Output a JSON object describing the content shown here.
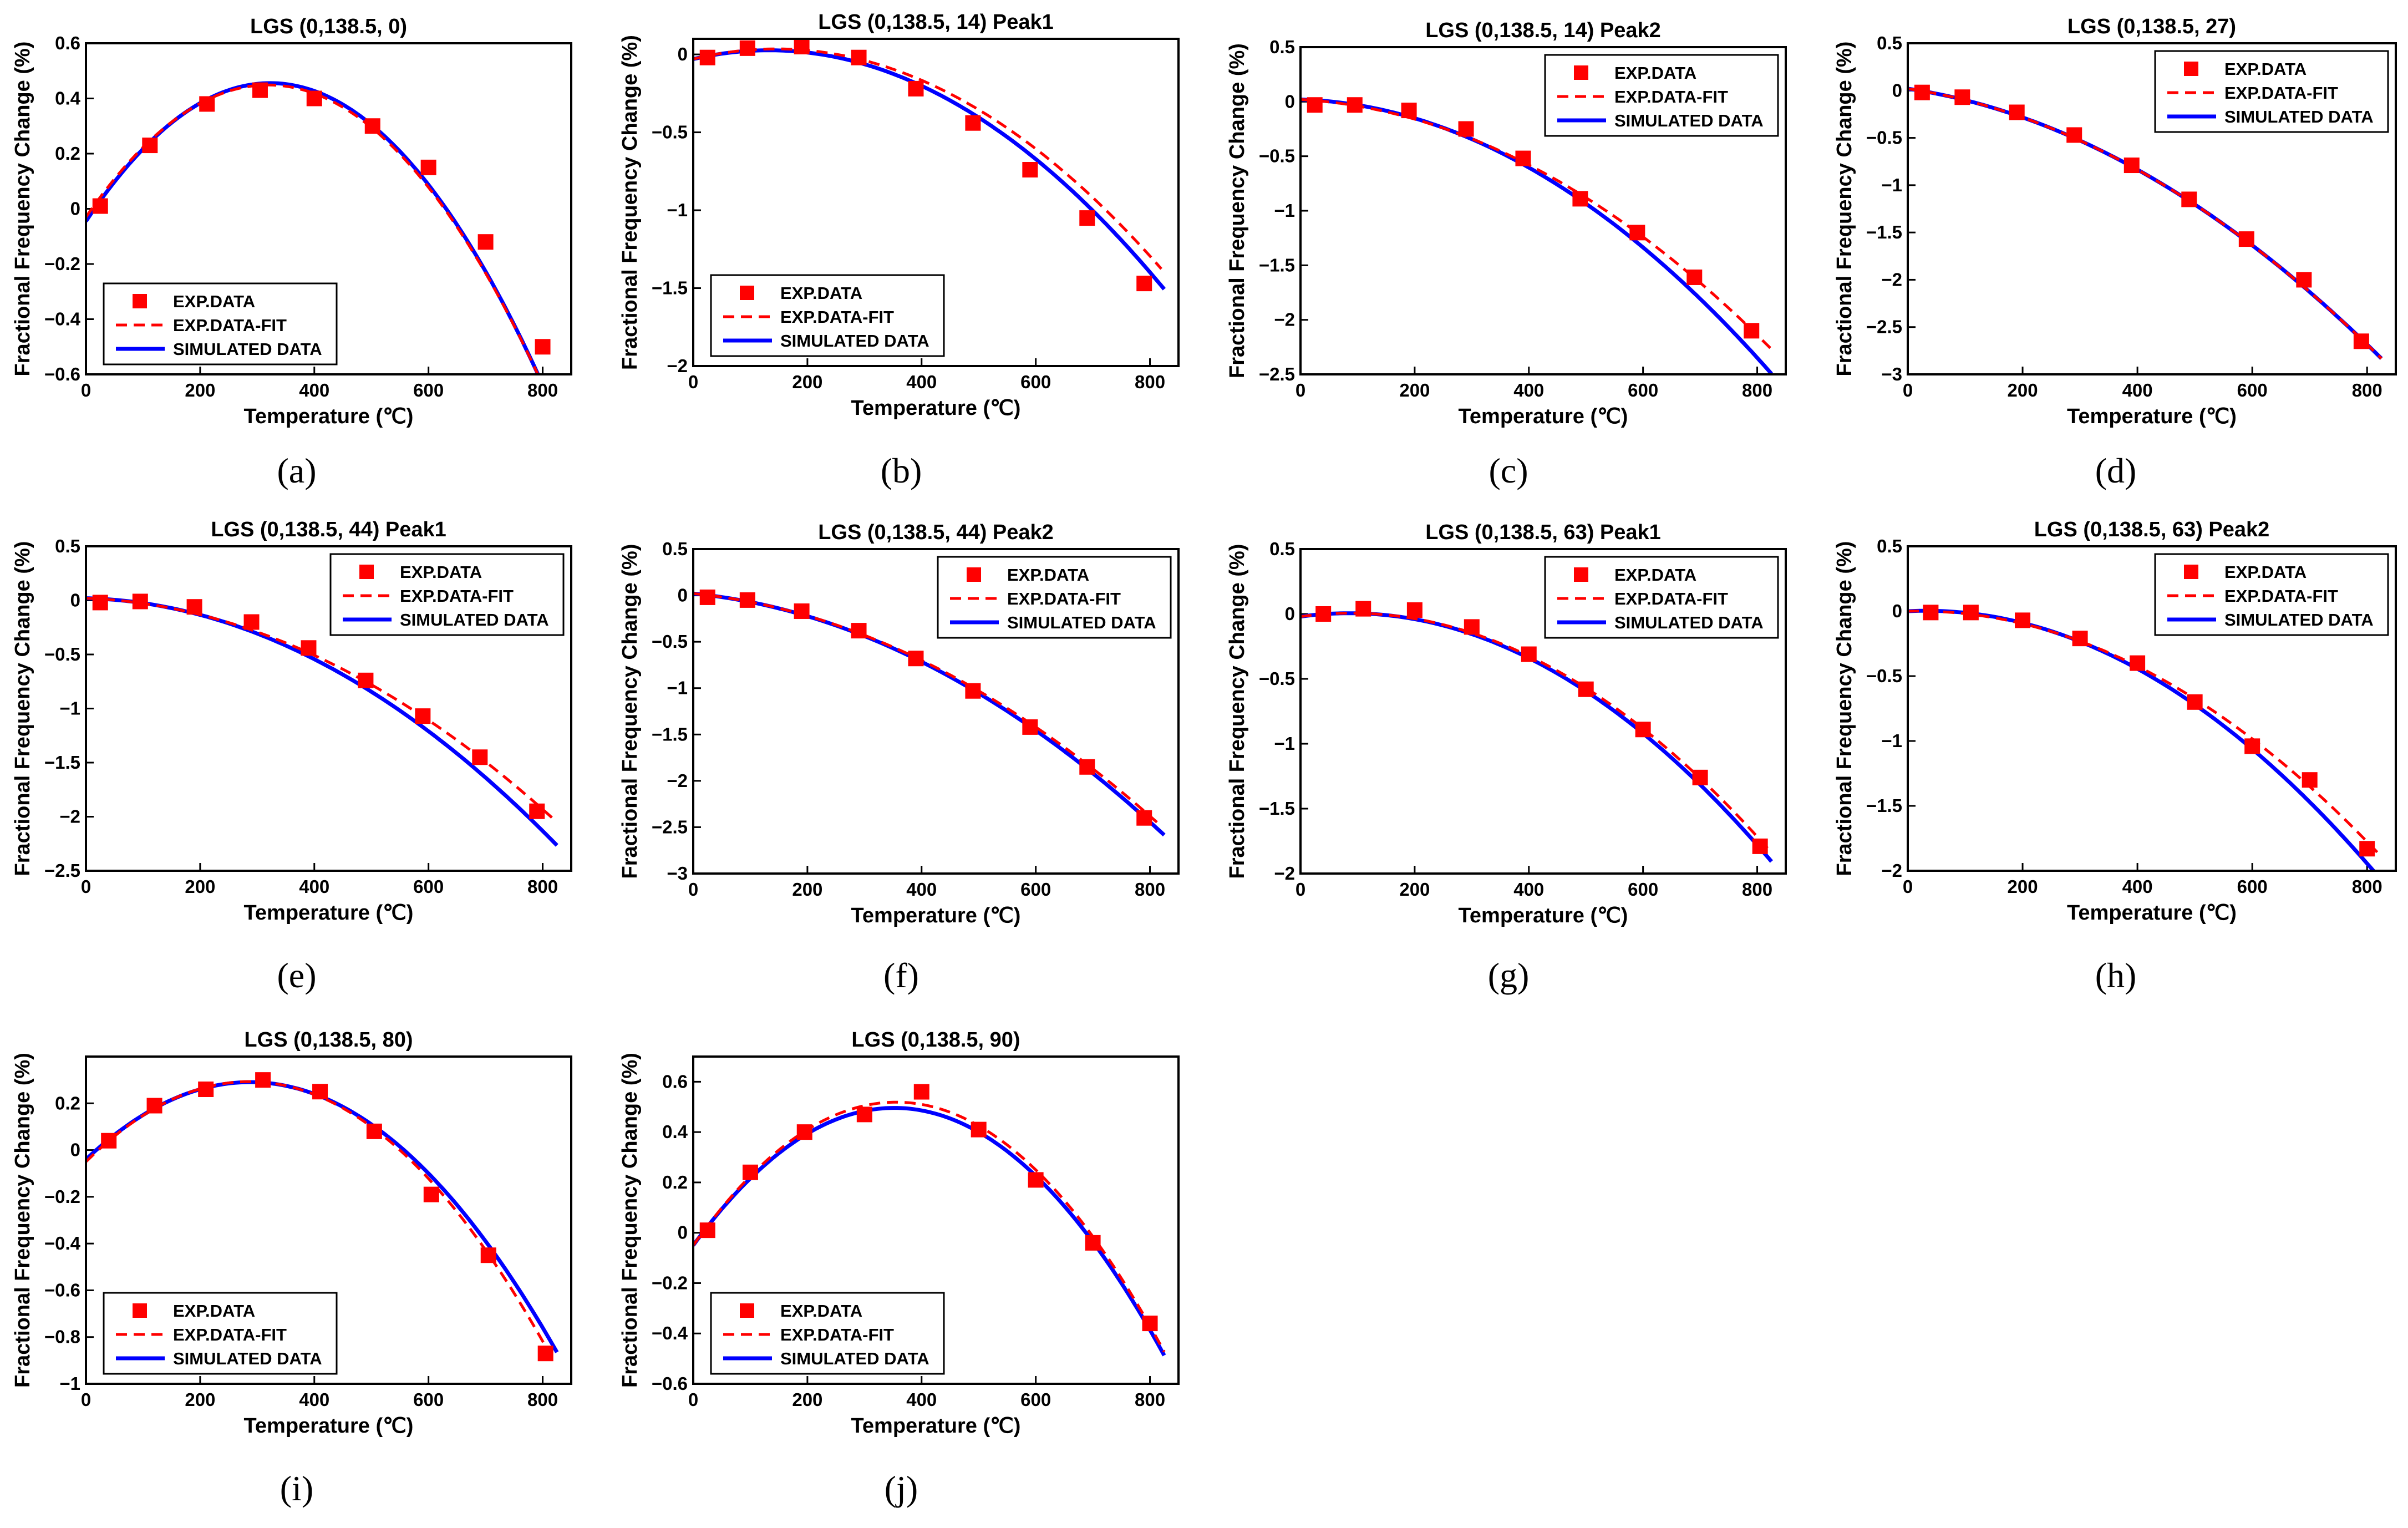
{
  "figure": {
    "colors": {
      "exp": "#ff0000",
      "fit": "#ff0000",
      "sim": "#0000ff",
      "axis": "#000000"
    }
  },
  "chart_data": [
    {
      "type": "scatter+line",
      "panel": "(a)",
      "title": "LGS (0,138.5, 0)",
      "xlabel": "Temperature (℃)",
      "ylabel": "Fractional Frequency Change (%)",
      "xlim": [
        0,
        850
      ],
      "ylim": [
        -0.6,
        0.6
      ],
      "xticks": [
        0,
        200,
        400,
        600,
        800
      ],
      "yticks": [
        -0.6,
        -0.4,
        -0.2,
        0,
        0.2,
        0.4,
        0.6
      ],
      "ytick_labels": [
        "-0.6",
        "-0.4",
        "-0.2",
        "0",
        "0.2",
        "0.4",
        "0.6"
      ],
      "legend": {
        "position": "bottom-left",
        "entries": [
          "EXP.DATA",
          "EXP.DATA-FIT",
          "SIMULATED DATA"
        ]
      },
      "exp": {
        "x": [
          25,
          112,
          212,
          305,
          400,
          502,
          600,
          700,
          800
        ],
        "y": [
          0.01,
          0.23,
          0.38,
          0.43,
          0.4,
          0.3,
          0.15,
          -0.12,
          -0.5
        ]
      },
      "fit": {
        "coef": [
          -0.03,
          0.003,
          -4.7e-06
        ],
        "x0": 0,
        "x1": 820
      },
      "sim": {
        "coef": [
          -0.045,
          0.0031,
          -4.8e-06
        ],
        "x0": 0,
        "x1": 825
      }
    },
    {
      "type": "scatter+line",
      "panel": "(b)",
      "title": "LGS (0,138.5, 14) Peak1",
      "xlabel": "Temperature (℃)",
      "ylabel": "Fractional Frequency Change (%)",
      "xlim": [
        0,
        850
      ],
      "ylim": [
        -2,
        0.1
      ],
      "xticks": [
        0,
        200,
        400,
        600,
        800
      ],
      "yticks": [
        -2,
        -1.5,
        -1,
        -0.5,
        0
      ],
      "ytick_labels": [
        "-2",
        "-1.5",
        "-1",
        "-0.5",
        "0"
      ],
      "legend": {
        "position": "bottom-left",
        "entries": [
          "EXP.DATA",
          "EXP.DATA-FIT",
          "SIMULATED DATA"
        ]
      },
      "exp": {
        "x": [
          25,
          95,
          190,
          290,
          390,
          490,
          590,
          690,
          790
        ],
        "y": [
          -0.02,
          0.04,
          0.05,
          -0.02,
          -0.22,
          -0.44,
          -0.74,
          -1.05,
          -1.47
        ]
      },
      "fit": {
        "coef": [
          -0.03,
          0.0009,
          -3.1e-06
        ],
        "x0": 0,
        "x1": 820
      },
      "sim": {
        "coef": [
          -0.03,
          0.00085,
          -3.2e-06
        ],
        "x0": 0,
        "x1": 825
      }
    },
    {
      "type": "scatter+line",
      "panel": "(c)",
      "title": "LGS (0,138.5, 14) Peak2",
      "xlabel": "Temperature (℃)",
      "ylabel": "Fractional Frequency Change (%)",
      "xlim": [
        0,
        850
      ],
      "ylim": [
        -2.5,
        0.5
      ],
      "xticks": [
        0,
        200,
        400,
        600,
        800
      ],
      "yticks": [
        -2.5,
        -2,
        -1.5,
        -1,
        -0.5,
        0,
        0.5
      ],
      "ytick_labels": [
        "-2.5",
        "-2",
        "-1.5",
        "-1",
        "-0.5",
        "0",
        "0.5"
      ],
      "legend": {
        "position": "top-right",
        "entries": [
          "EXP.DATA",
          "EXP.DATA-FIT",
          "SIMULATED DATA"
        ]
      },
      "exp": {
        "x": [
          25,
          95,
          190,
          290,
          390,
          490,
          590,
          690,
          790
        ],
        "y": [
          -0.03,
          -0.03,
          -0.08,
          -0.25,
          -0.52,
          -0.89,
          -1.2,
          -1.61,
          -2.1
        ]
      },
      "fit": {
        "coef": [
          0.02,
          -0.0003,
          -3e-06
        ],
        "x0": 0,
        "x1": 825
      },
      "sim": {
        "coef": [
          0.02,
          -0.00016,
          -3.5e-06
        ],
        "x0": 0,
        "x1": 825
      }
    },
    {
      "type": "scatter+line",
      "panel": "(d)",
      "title": "LGS (0,138.5, 27)",
      "xlabel": "Temperature (℃)",
      "ylabel": "Fractional Frequency Change (%)",
      "xlim": [
        0,
        850
      ],
      "ylim": [
        -3,
        0.5
      ],
      "xticks": [
        0,
        200,
        400,
        600,
        800
      ],
      "yticks": [
        -3,
        -2.5,
        -2,
        -1.5,
        -1,
        -0.5,
        0,
        0.5
      ],
      "ytick_labels": [
        "-3",
        "-2.5",
        "-2",
        "-1.5",
        "-1",
        "-0.5",
        "0",
        "0.5"
      ],
      "legend": {
        "position": "top-right",
        "entries": [
          "EXP.DATA",
          "EXP.DATA-FIT",
          "SIMULATED DATA"
        ]
      },
      "exp": {
        "x": [
          25,
          95,
          190,
          290,
          390,
          490,
          590,
          690,
          790
        ],
        "y": [
          -0.02,
          -0.07,
          -0.23,
          -0.47,
          -0.79,
          -1.15,
          -1.57,
          -2.0,
          -2.65
        ]
      },
      "fit": {
        "coef": [
          0.02,
          -0.0009,
          -3.1e-06
        ],
        "x0": 0,
        "x1": 825
      },
      "sim": {
        "coef": [
          0.02,
          -0.0009,
          -3.1e-06
        ],
        "x0": 0,
        "x1": 825
      }
    },
    {
      "type": "scatter+line",
      "panel": "(e)",
      "title": "LGS (0,138.5, 44) Peak1",
      "xlabel": "Temperature (℃)",
      "ylabel": "Fractional Frequency Change (%)",
      "xlim": [
        0,
        850
      ],
      "ylim": [
        -2.5,
        0.5
      ],
      "xticks": [
        0,
        200,
        400,
        600,
        800
      ],
      "yticks": [
        -2.5,
        -2,
        -1.5,
        -1,
        -0.5,
        0,
        0.5
      ],
      "ytick_labels": [
        "-2.5",
        "-2",
        "-1.5",
        "-1",
        "-0.5",
        "0",
        "0.5"
      ],
      "legend": {
        "position": "top-right",
        "entries": [
          "EXP.DATA",
          "EXP.DATA-FIT",
          "SIMULATED DATA"
        ]
      },
      "exp": {
        "x": [
          25,
          95,
          190,
          290,
          390,
          490,
          590,
          690,
          790
        ],
        "y": [
          -0.02,
          -0.01,
          -0.06,
          -0.2,
          -0.44,
          -0.74,
          -1.07,
          -1.45,
          -1.95
        ]
      },
      "fit": {
        "coef": [
          0.02,
          -0.0002,
          -2.8e-06
        ],
        "x0": 0,
        "x1": 820
      },
      "sim": {
        "coef": [
          0.02,
          -0.00013,
          -3.2e-06
        ],
        "x0": 0,
        "x1": 825
      }
    },
    {
      "type": "scatter+line",
      "panel": "(f)",
      "title": "LGS (0,138.5, 44) Peak2",
      "xlabel": "Temperature (℃)",
      "ylabel": "Fractional Frequency Change (%)",
      "xlim": [
        0,
        850
      ],
      "ylim": [
        -3,
        0.5
      ],
      "xticks": [
        0,
        200,
        400,
        600,
        800
      ],
      "yticks": [
        -3,
        -2.5,
        -2,
        -1.5,
        -1,
        -0.5,
        0,
        0.5
      ],
      "ytick_labels": [
        "-3",
        "-2.5",
        "-2",
        "-1.5",
        "-1",
        "-0.5",
        "0",
        "0.5"
      ],
      "legend": {
        "position": "top-right",
        "entries": [
          "EXP.DATA",
          "EXP.DATA-FIT",
          "SIMULATED DATA"
        ]
      },
      "exp": {
        "x": [
          25,
          95,
          190,
          290,
          390,
          490,
          590,
          690,
          790
        ],
        "y": [
          -0.02,
          -0.05,
          -0.17,
          -0.38,
          -0.68,
          -1.03,
          -1.42,
          -1.85,
          -2.4
        ]
      },
      "fit": {
        "coef": [
          0.02,
          -0.0006,
          -3e-06
        ],
        "x0": 0,
        "x1": 820
      },
      "sim": {
        "coef": [
          0.02,
          -0.0006,
          -3.1e-06
        ],
        "x0": 0,
        "x1": 825
      }
    },
    {
      "type": "scatter+line",
      "panel": "(g)",
      "title": "LGS (0,138.5, 63) Peak1",
      "xlabel": "Temperature (℃)",
      "ylabel": "Fractional Frequency Change (%)",
      "xlim": [
        0,
        850
      ],
      "ylim": [
        -2,
        0.5
      ],
      "xticks": [
        0,
        200,
        400,
        600,
        800
      ],
      "yticks": [
        -2,
        -1.5,
        -1,
        -0.5,
        0,
        0.5
      ],
      "ytick_labels": [
        "-2",
        "-1.5",
        "-1",
        "-0.5",
        "0",
        "0.5"
      ],
      "legend": {
        "position": "top-right",
        "entries": [
          "EXP.DATA",
          "EXP.DATA-FIT",
          "SIMULATED DATA"
        ]
      },
      "exp": {
        "x": [
          40,
          110,
          200,
          300,
          400,
          500,
          600,
          700,
          805
        ],
        "y": [
          0.0,
          0.04,
          0.03,
          -0.1,
          -0.31,
          -0.58,
          -0.89,
          -1.26,
          -1.79
        ]
      },
      "fit": {
        "coef": [
          -0.02,
          0.0006,
          -3.4e-06
        ],
        "x0": 0,
        "x1": 820
      },
      "sim": {
        "coef": [
          -0.02,
          0.0006,
          -3.5e-06
        ],
        "x0": 0,
        "x1": 825
      }
    },
    {
      "type": "scatter+line",
      "panel": "(h)",
      "title": "LGS (0,138.5, 63) Peak2",
      "xlabel": "Temperature (℃)",
      "ylabel": "Fractional Frequency Change (%)",
      "xlim": [
        0,
        850
      ],
      "ylim": [
        -2,
        0.5
      ],
      "xticks": [
        0,
        200,
        400,
        600,
        800
      ],
      "yticks": [
        -2,
        -1.5,
        -1,
        -0.5,
        0,
        0.5
      ],
      "ytick_labels": [
        "-2",
        "-1.5",
        "-1",
        "-0.5",
        "0",
        "0.5"
      ],
      "legend": {
        "position": "top-right",
        "entries": [
          "EXP.DATA",
          "EXP.DATA-FIT",
          "SIMULATED DATA"
        ]
      },
      "exp": {
        "x": [
          40,
          110,
          200,
          300,
          400,
          500,
          600,
          700,
          800
        ],
        "y": [
          -0.01,
          -0.01,
          -0.07,
          -0.21,
          -0.4,
          -0.7,
          -1.04,
          -1.3,
          -1.83
        ]
      },
      "fit": {
        "coef": [
          0.0,
          0.0001,
          -2.9e-06
        ],
        "x0": 0,
        "x1": 825
      },
      "sim": {
        "coef": [
          0.0,
          0.00021,
          -3.3e-06
        ],
        "x0": 0,
        "x1": 825
      }
    },
    {
      "type": "scatter+line",
      "panel": "(i)",
      "title": "LGS (0,138.5, 80)",
      "xlabel": "Temperature (℃)",
      "ylabel": "Fractional Frequency Change (%)",
      "xlim": [
        0,
        850
      ],
      "ylim": [
        -1,
        0.4
      ],
      "xticks": [
        0,
        200,
        400,
        600,
        800
      ],
      "yticks": [
        -1,
        -0.8,
        -0.6,
        -0.4,
        -0.2,
        0,
        0.2
      ],
      "ytick_labels": [
        "-1",
        "-0.8",
        "-0.6",
        "-0.4",
        "-0.2",
        "0",
        "0.2"
      ],
      "legend": {
        "position": "bottom-left",
        "entries": [
          "EXP.DATA",
          "EXP.DATA-FIT",
          "SIMULATED DATA"
        ]
      },
      "exp": {
        "x": [
          40,
          120,
          210,
          310,
          410,
          505,
          605,
          705,
          805
        ],
        "y": [
          0.04,
          0.19,
          0.26,
          0.3,
          0.25,
          0.08,
          -0.19,
          -0.45,
          -0.87
        ]
      },
      "fit": {
        "coef": [
          -0.05,
          0.0024,
          -4.2e-06
        ],
        "x0": 0,
        "x1": 815
      },
      "sim": {
        "coef": [
          -0.04,
          0.0023,
          -4e-06
        ],
        "x0": 0,
        "x1": 825
      }
    },
    {
      "type": "scatter+line",
      "panel": "(j)",
      "title": "LGS (0,138.5, 90)",
      "xlabel": "Temperature (℃)",
      "ylabel": "Fractional Frequency Change (%)",
      "xlim": [
        0,
        850
      ],
      "ylim": [
        -0.6,
        0.7
      ],
      "xticks": [
        0,
        200,
        400,
        600,
        800
      ],
      "yticks": [
        -0.6,
        -0.4,
        -0.2,
        0,
        0.2,
        0.4,
        0.6
      ],
      "ytick_labels": [
        "-0.6",
        "-0.4",
        "-0.2",
        "0",
        "0.2",
        "0.4",
        "0.6"
      ],
      "legend": {
        "position": "bottom-left",
        "entries": [
          "EXP.DATA",
          "EXP.DATA-FIT",
          "SIMULATED DATA"
        ]
      },
      "exp": {
        "x": [
          25,
          100,
          195,
          300,
          400,
          500,
          600,
          700,
          800
        ],
        "y": [
          0.01,
          0.24,
          0.4,
          0.47,
          0.56,
          0.41,
          0.21,
          -0.04,
          -0.36
        ]
      },
      "fit": {
        "coef": [
          -0.05,
          0.0032,
          -4.5e-06
        ],
        "x0": 0,
        "x1": 825
      },
      "sim": {
        "coef": [
          -0.05,
          0.0031,
          -4.4e-06
        ],
        "x0": 0,
        "x1": 825
      }
    }
  ]
}
